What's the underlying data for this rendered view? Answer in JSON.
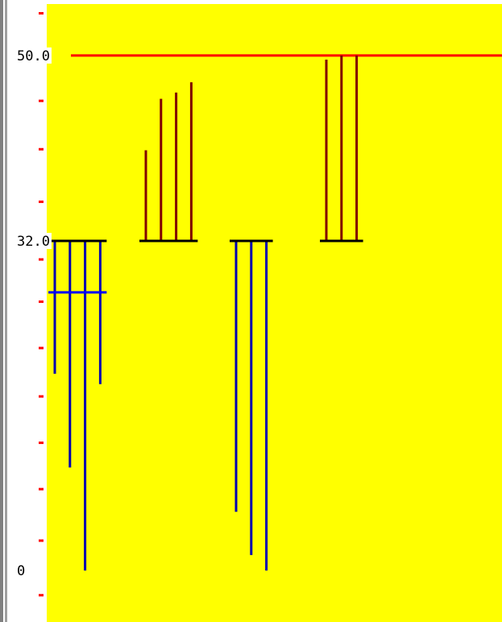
{
  "chart_data": {
    "type": "baseline-bars",
    "ylim": [
      -5,
      55
    ],
    "yticks": [
      {
        "value": 50,
        "label": "50.0"
      },
      {
        "value": 32,
        "label": "32.0"
      },
      0
    ],
    "minor_yticks": [
      54.1,
      45.6,
      40.9,
      35.8,
      30.2,
      26.1,
      21.6,
      16.9,
      12.4,
      7.9,
      2.9,
      -2.4
    ],
    "baseline": 32,
    "reference_line": {
      "value": 50,
      "color": "#ff0000"
    },
    "series": [
      {
        "color": "#0000b0",
        "values": [
          19.1,
          10,
          0,
          18.1
        ],
        "marker": 27
      },
      {
        "color": "#800000",
        "values": [
          40.8,
          45.8,
          46.4,
          47.4
        ]
      },
      {
        "color": "#0000b0",
        "values": [
          5.7,
          1.5,
          0
        ]
      },
      {
        "color": "#800000",
        "values": [
          49.6,
          50,
          50
        ]
      }
    ]
  }
}
